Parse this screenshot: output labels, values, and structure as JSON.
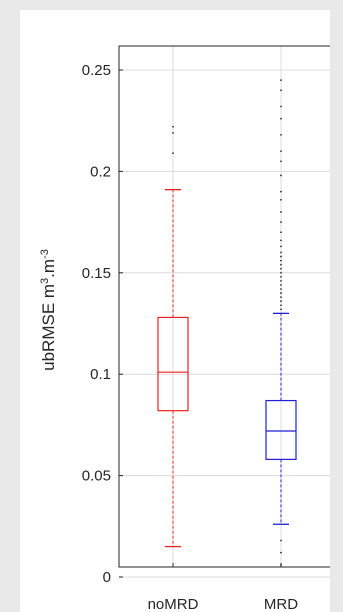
{
  "chart_data": {
    "type": "box",
    "title": "",
    "xlabel": "",
    "ylabel": "ubRMSE m",
    "ylabel_sup1": "3",
    "ylabel_mid": ".m",
    "ylabel_sup2": "-3",
    "ylim": [
      0,
      0.25
    ],
    "yticks": [
      0,
      0.05,
      0.1,
      0.15,
      0.2,
      0.25
    ],
    "ytick_labels": [
      "0",
      "0.05",
      "0.1",
      "0.15",
      "0.2",
      "0.25"
    ],
    "grid": true,
    "categories": [
      "noMRD",
      "MRD"
    ],
    "series": [
      {
        "category": "noMRD",
        "color": "#e8231e",
        "whisker_low": 0.015,
        "q1": 0.082,
        "median": 0.101,
        "q3": 0.128,
        "whisker_high": 0.191,
        "outliers": [
          0.209,
          0.219,
          0.222
        ]
      },
      {
        "category": "MRD",
        "color": "#1f1fd6",
        "whisker_low": 0.026,
        "q1": 0.058,
        "median": 0.072,
        "q3": 0.087,
        "whisker_high": 0.13,
        "outliers": [
          0.006,
          0.012,
          0.018,
          0.132,
          0.134,
          0.136,
          0.138,
          0.14,
          0.142,
          0.144,
          0.146,
          0.148,
          0.15,
          0.152,
          0.154,
          0.156,
          0.158,
          0.16,
          0.163,
          0.166,
          0.17,
          0.175,
          0.18,
          0.186,
          0.19,
          0.198,
          0.205,
          0.21,
          0.218,
          0.226,
          0.232,
          0.24,
          0.245
        ]
      }
    ]
  }
}
